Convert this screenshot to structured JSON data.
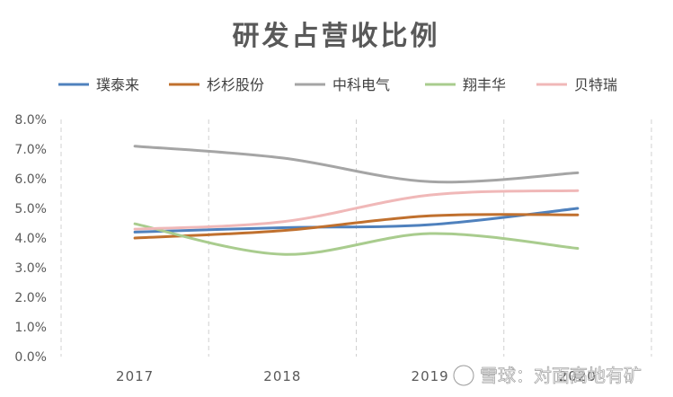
{
  "chart_data": {
    "type": "line",
    "title": "研发占营收比例",
    "xlabel": "",
    "ylabel": "",
    "categories": [
      "2017",
      "2018",
      "2019",
      "2020"
    ],
    "ylim": [
      0,
      0.08
    ],
    "yticks": [
      "0.0%",
      "1.0%",
      "2.0%",
      "3.0%",
      "4.0%",
      "5.0%",
      "6.0%",
      "7.0%",
      "8.0%"
    ],
    "legend_position": "top",
    "grid": "vertical dashed",
    "series": [
      {
        "name": "璞泰来",
        "color": "#4f81bd",
        "values": [
          0.042,
          0.0435,
          0.0445,
          0.05
        ]
      },
      {
        "name": "杉杉股份",
        "color": "#c0702e",
        "values": [
          0.04,
          0.0425,
          0.0475,
          0.0478
        ]
      },
      {
        "name": "中科电气",
        "color": "#a5a5a5",
        "values": [
          0.071,
          0.067,
          0.059,
          0.062
        ]
      },
      {
        "name": "翔丰华",
        "color": "#a9cc8e",
        "values": [
          0.0448,
          0.0345,
          0.0415,
          0.0365
        ]
      },
      {
        "name": "贝特瑞",
        "color": "#f0b8b8",
        "values": [
          0.043,
          0.0455,
          0.0545,
          0.056
        ]
      }
    ]
  },
  "watermark": "雪球：对面高地有矿"
}
